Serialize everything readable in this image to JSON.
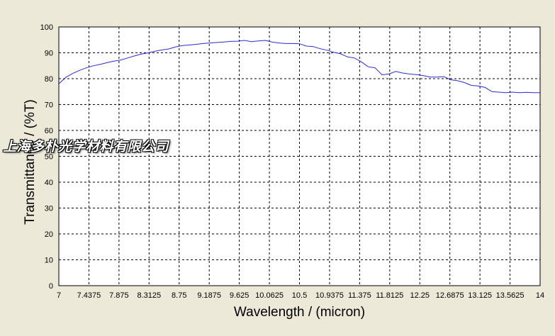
{
  "watermark": "上海多朴光学材料有限公司",
  "colors": {
    "line": "#2b2bd6",
    "plot_bg": "#ffffff",
    "grid": "#000000",
    "window_bg": "#ece9d8"
  },
  "chart_data": {
    "type": "line",
    "title": "",
    "xlabel": "Wavelength / (micron)",
    "ylabel": "Transmittance / (%T)",
    "xlim": [
      7,
      14
    ],
    "ylim": [
      0,
      100
    ],
    "grid": true,
    "x_ticks": [
      "7",
      "7.4375",
      "7.875",
      "8.3125",
      "8.75",
      "9.1875",
      "9.625",
      "10.0625",
      "10.5",
      "10.9375",
      "11.375",
      "11.8125",
      "12.25",
      "12.6875",
      "13.125",
      "13.5625",
      "14"
    ],
    "y_ticks": [
      "0",
      "10",
      "20",
      "30",
      "40",
      "50",
      "60",
      "70",
      "80",
      "90",
      "100"
    ],
    "series": [
      {
        "x": [
          7.0,
          7.1,
          7.2,
          7.3,
          7.4,
          7.5,
          7.6,
          7.7,
          7.8,
          7.9,
          8.0,
          8.1,
          8.2,
          8.3,
          8.4,
          8.5,
          8.6,
          8.7,
          8.8,
          8.9,
          9.0,
          9.1,
          9.2,
          9.3,
          9.4,
          9.5,
          9.6,
          9.7,
          9.8,
          9.9,
          10.0,
          10.1,
          10.2,
          10.3,
          10.4,
          10.5,
          10.6,
          10.7,
          10.8,
          10.9,
          11.0,
          11.1,
          11.2,
          11.3,
          11.4,
          11.5,
          11.6,
          11.7,
          11.8,
          11.9,
          12.0,
          12.1,
          12.2,
          12.3,
          12.4,
          12.5,
          12.6,
          12.7,
          12.8,
          12.9,
          13.0,
          13.1,
          13.2,
          13.3,
          13.4,
          13.5,
          13.6,
          13.7,
          13.8,
          13.9,
          14.0
        ],
        "values": [
          78,
          80.5,
          82,
          83.2,
          84.2,
          85,
          85.5,
          86.2,
          86.8,
          87.2,
          88,
          88.8,
          89.5,
          90,
          90.6,
          91.1,
          91.5,
          92.3,
          92.8,
          93,
          93.3,
          93.6,
          93.8,
          94,
          94.2,
          94.4,
          94.5,
          94.8,
          94.3,
          94.6,
          94.8,
          94.2,
          93.8,
          93.6,
          93.6,
          93.5,
          92.6,
          92.4,
          91.6,
          91,
          90.2,
          89.6,
          88.4,
          88,
          86.5,
          84.6,
          84.2,
          81.5,
          81.8,
          82.8,
          82.2,
          81.8,
          81.6,
          81.2,
          80.6,
          80.6,
          80.8,
          79.6,
          79.2,
          78.5,
          77.4,
          77.2,
          76.6,
          75,
          74.8,
          74.6,
          74.8,
          74.6,
          74.7,
          74.6,
          74.6
        ]
      }
    ]
  }
}
